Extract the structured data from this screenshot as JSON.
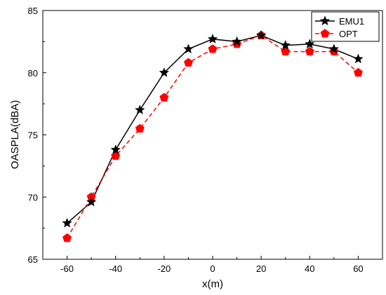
{
  "chart_data": {
    "type": "line",
    "title": "",
    "xlabel": "x(m)",
    "ylabel": "OASPLA(dBA)",
    "xlim": [
      -70,
      70
    ],
    "ylim": [
      65,
      85
    ],
    "xticks": [
      -60,
      -40,
      -20,
      0,
      20,
      40,
      60
    ],
    "yticks": [
      65,
      70,
      75,
      80,
      85
    ],
    "grid": false,
    "legend_position": "top-right",
    "x": [
      -60,
      -50,
      -40,
      -30,
      -20,
      -10,
      0,
      10,
      20,
      30,
      40,
      50,
      60
    ],
    "series": [
      {
        "name": "EMU1",
        "values": [
          67.9,
          69.6,
          73.8,
          77.0,
          80.0,
          81.9,
          82.7,
          82.5,
          83.0,
          82.2,
          82.3,
          81.9,
          81.1
        ],
        "color": "#000000",
        "line_style": "solid",
        "marker": "star"
      },
      {
        "name": "OPT",
        "values": [
          66.7,
          70.0,
          73.3,
          75.5,
          78.0,
          80.8,
          81.9,
          82.3,
          83.0,
          81.7,
          81.7,
          81.7,
          80.0
        ],
        "color": "#ff0000",
        "line_style": "dashed",
        "marker": "pentagon"
      }
    ]
  }
}
